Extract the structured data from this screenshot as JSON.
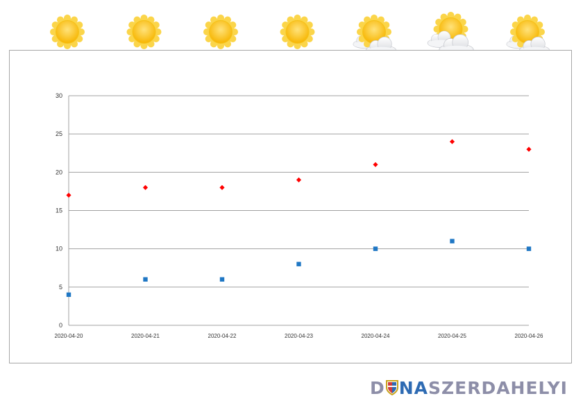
{
  "weather_icons": [
    {
      "date": "2020-04-20",
      "icon": "sun-icon"
    },
    {
      "date": "2020-04-21",
      "icon": "sun-icon"
    },
    {
      "date": "2020-04-22",
      "icon": "sun-icon"
    },
    {
      "date": "2020-04-23",
      "icon": "sun-icon"
    },
    {
      "date": "2020-04-24",
      "icon": "sun-behind-cloud-icon"
    },
    {
      "date": "2020-04-25",
      "icon": "sun-behind-clouds-icon"
    },
    {
      "date": "2020-04-26",
      "icon": "sun-behind-cloud-icon"
    }
  ],
  "chart_data": {
    "type": "scatter",
    "title": "",
    "xlabel": "",
    "ylabel": "",
    "categories": [
      "2020-04-20",
      "2020-04-21",
      "2020-04-22",
      "2020-04-23",
      "2020-04-24",
      "2020-04-25",
      "2020-04-26"
    ],
    "series": [
      {
        "values": [
          17,
          18,
          18,
          19,
          21,
          24,
          23
        ],
        "color": "#ff0000",
        "marker": "diamond"
      },
      {
        "values": [
          4,
          6,
          6,
          8,
          10,
          11,
          10
        ],
        "color": "#1f77c4",
        "marker": "square"
      }
    ],
    "yticks": [
      "0",
      "5",
      "10",
      "15",
      "20",
      "25",
      "30"
    ],
    "ylim": [
      0,
      30
    ],
    "grid": true,
    "legend": "none"
  },
  "logo": {
    "part1": "D",
    "part2": "NA",
    "part3": "SZERDAHELYI",
    "color_part1": "#8d8ea8",
    "color_part3": "#8d8ea8",
    "color_part2": "#2e6bb3"
  }
}
